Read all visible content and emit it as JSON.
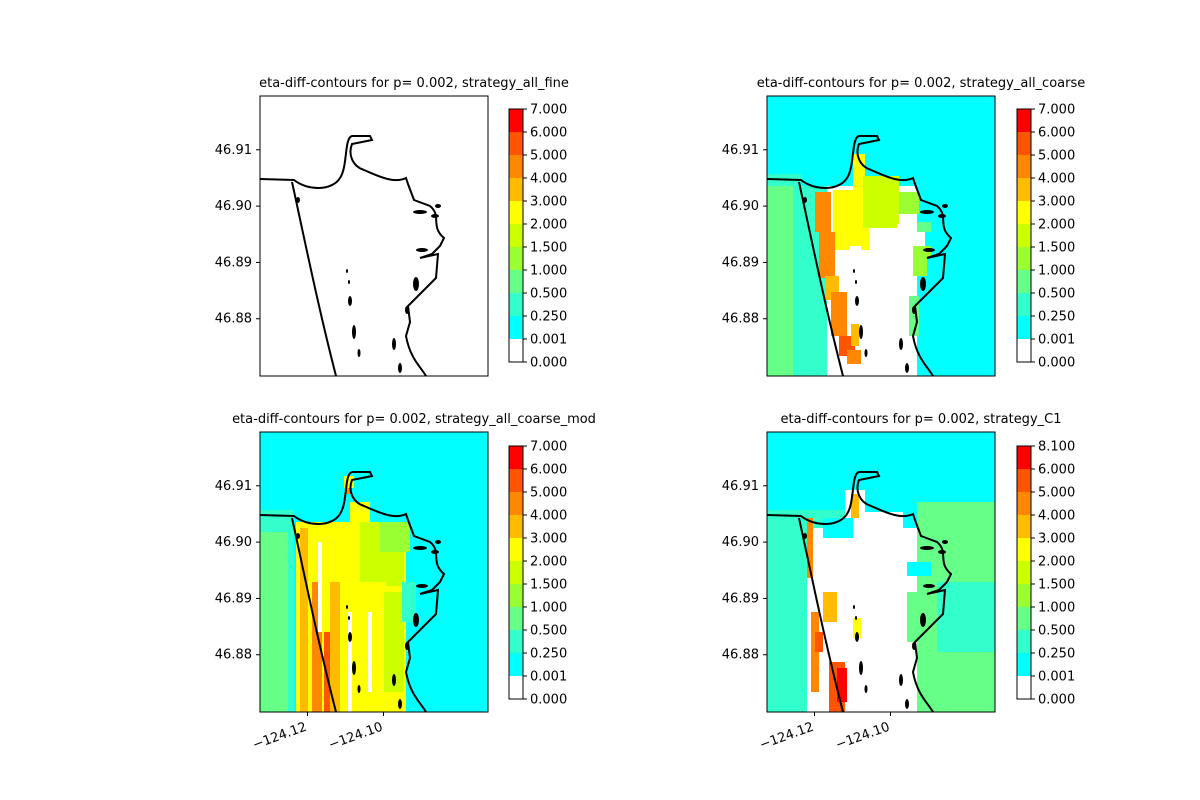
{
  "chart_data": [
    {
      "type": "heatmap",
      "title": "eta-diff-contours for p= 0.002, strategy_all_fine",
      "yticks": [
        "46.91",
        "46.90",
        "46.89",
        "46.88"
      ],
      "yvals": [
        46.91,
        46.9,
        46.89,
        46.88
      ],
      "xticks": [],
      "xvals": [],
      "colorbar_ticks": [
        "7.000",
        "6.000",
        "5.000",
        "4.000",
        "3.000",
        "2.000",
        "1.500",
        "1.000",
        "0.500",
        "0.250",
        "0.001",
        "0.000"
      ],
      "fill": "none"
    },
    {
      "type": "heatmap",
      "title": "eta-diff-contours for p= 0.002, strategy_all_coarse",
      "yticks": [
        "46.91",
        "46.90",
        "46.89",
        "46.88"
      ],
      "yvals": [
        46.91,
        46.9,
        46.89,
        46.88
      ],
      "xticks": [],
      "xvals": [],
      "colorbar_ticks": [
        "7.000",
        "6.000",
        "5.000",
        "4.000",
        "3.000",
        "2.000",
        "1.500",
        "1.000",
        "0.500",
        "0.250",
        "0.001",
        "0.000"
      ],
      "fill": "coarse"
    },
    {
      "type": "heatmap",
      "title": "eta-diff-contours for p= 0.002, strategy_all_coarse_mod",
      "yticks": [
        "46.91",
        "46.90",
        "46.89",
        "46.88"
      ],
      "yvals": [
        46.91,
        46.9,
        46.89,
        46.88
      ],
      "xticks": [
        "−124.12",
        "−124.10"
      ],
      "xvals": [
        -124.12,
        -124.1
      ],
      "colorbar_ticks": [
        "7.000",
        "6.000",
        "5.000",
        "4.000",
        "3.000",
        "2.000",
        "1.500",
        "1.000",
        "0.500",
        "0.250",
        "0.001",
        "0.000"
      ],
      "fill": "coarse_mod"
    },
    {
      "type": "heatmap",
      "title": "eta-diff-contours for p= 0.002, strategy_C1",
      "yticks": [
        "46.91",
        "46.90",
        "46.89",
        "46.88"
      ],
      "yvals": [
        46.91,
        46.9,
        46.89,
        46.88
      ],
      "xticks": [
        "−124.12",
        "−124.10"
      ],
      "xvals": [
        -124.12,
        -124.1
      ],
      "colorbar_ticks": [
        "8.100",
        "6.000",
        "5.000",
        "4.000",
        "3.000",
        "2.000",
        "1.500",
        "1.000",
        "0.500",
        "0.250",
        "0.001",
        "0.000"
      ],
      "fill": "c1"
    }
  ],
  "colors": {
    "levels": [
      "#ffffff",
      "#00ffff",
      "#33ffcc",
      "#66ff88",
      "#99ff33",
      "#ccff00",
      "#ffff00",
      "#ffbb00",
      "#ff8800",
      "#ff5500",
      "#ff0000"
    ],
    "coastline": "#000000"
  }
}
